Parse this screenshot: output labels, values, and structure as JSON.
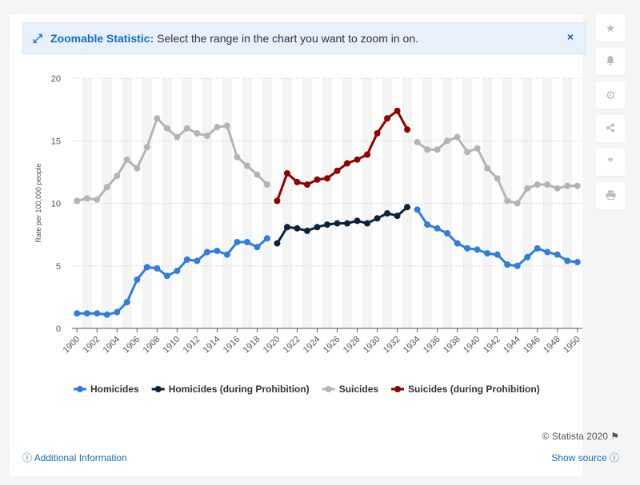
{
  "banner": {
    "icon": "expand-arrows-icon",
    "title": "Zoomable Statistic:",
    "text": "Select the range in the chart you want to zoom in on.",
    "close": "×"
  },
  "sidebar": [
    {
      "icon": "star-icon",
      "glyph": "★"
    },
    {
      "icon": "bell-icon",
      "glyph": "🔔"
    },
    {
      "icon": "gear-icon",
      "glyph": "⚙"
    },
    {
      "icon": "share-icon",
      "glyph": "⋖"
    },
    {
      "icon": "quote-icon",
      "glyph": "❞"
    },
    {
      "icon": "print-icon",
      "glyph": "⎙"
    }
  ],
  "footer": {
    "credit": "© Statista 2020",
    "additional_info": "Additional Information",
    "show_source": "Show source"
  },
  "chart_data": {
    "type": "line",
    "title": "",
    "xlabel": "",
    "ylabel": "Rate per 100,000 people",
    "ylim": [
      0,
      20
    ],
    "yticks": [
      0,
      5,
      10,
      15,
      20
    ],
    "xlim": [
      1900,
      1950
    ],
    "xticks": [
      1900,
      1902,
      1904,
      1906,
      1908,
      1910,
      1912,
      1914,
      1916,
      1918,
      1920,
      1922,
      1924,
      1926,
      1928,
      1930,
      1932,
      1934,
      1936,
      1938,
      1940,
      1942,
      1944,
      1946,
      1948,
      1950
    ],
    "grid": "horizontal",
    "legend_position": "bottom",
    "series": [
      {
        "name": "Homicides",
        "color": "#2f7ed8",
        "x": [
          1900,
          1901,
          1902,
          1903,
          1904,
          1905,
          1906,
          1907,
          1908,
          1909,
          1910,
          1911,
          1912,
          1913,
          1914,
          1915,
          1916,
          1917,
          1918,
          1919
        ],
        "y": [
          1.2,
          1.2,
          1.2,
          1.1,
          1.3,
          2.1,
          3.9,
          4.9,
          4.8,
          4.2,
          4.6,
          5.5,
          5.4,
          6.1,
          6.2,
          5.9,
          6.9,
          6.9,
          6.5,
          7.2
        ]
      },
      {
        "name": "Homicides (during Prohibition)",
        "color": "#0d233a",
        "x": [
          1920,
          1921,
          1922,
          1923,
          1924,
          1925,
          1926,
          1927,
          1928,
          1929,
          1930,
          1931,
          1932,
          1933
        ],
        "y": [
          6.8,
          8.1,
          8.0,
          7.8,
          8.1,
          8.3,
          8.4,
          8.4,
          8.6,
          8.4,
          8.8,
          9.2,
          9.0,
          9.7
        ]
      },
      {
        "name": "Suicides",
        "color": "#b4b4b4",
        "x": [
          1900,
          1901,
          1902,
          1903,
          1904,
          1905,
          1906,
          1907,
          1908,
          1909,
          1910,
          1911,
          1912,
          1913,
          1914,
          1915,
          1916,
          1917,
          1918,
          1919
        ],
        "y": [
          10.2,
          10.4,
          10.3,
          11.3,
          12.2,
          13.5,
          12.8,
          14.5,
          16.8,
          16.0,
          15.3,
          16.0,
          15.6,
          15.4,
          16.1,
          16.2,
          13.7,
          13.0,
          12.3,
          11.5
        ],
        "y_after": [
          14.9,
          14.3,
          14.3,
          15.0,
          15.3,
          14.1,
          14.4,
          12.8,
          12.0,
          10.2,
          10.0,
          11.2,
          11.5,
          11.5,
          11.2,
          11.4,
          11.4
        ],
        "x_after": [
          1934,
          1935,
          1936,
          1937,
          1938,
          1939,
          1940,
          1941,
          1942,
          1943,
          1944,
          1945,
          1946,
          1947,
          1948,
          1949,
          1950
        ]
      },
      {
        "name": "Suicides (during Prohibition)",
        "color": "#910000",
        "x": [
          1920,
          1921,
          1922,
          1923,
          1924,
          1925,
          1926,
          1927,
          1928,
          1929,
          1930,
          1931,
          1932,
          1933
        ],
        "y": [
          10.2,
          12.4,
          11.7,
          11.5,
          11.9,
          12.0,
          12.6,
          13.2,
          13.5,
          13.9,
          15.6,
          16.8,
          17.4,
          15.9
        ]
      },
      {
        "name": "Homicides (after 1933)",
        "legend": false,
        "color": "#2f7ed8",
        "x": [
          1934,
          1935,
          1936,
          1937,
          1938,
          1939,
          1940,
          1941,
          1942,
          1943,
          1944,
          1945,
          1946,
          1947,
          1948,
          1949,
          1950
        ],
        "y": [
          9.5,
          8.3,
          8.0,
          7.6,
          6.8,
          6.4,
          6.3,
          6.0,
          5.9,
          5.1,
          5.0,
          5.7,
          6.4,
          6.1,
          5.9,
          5.4,
          5.3
        ]
      }
    ]
  }
}
